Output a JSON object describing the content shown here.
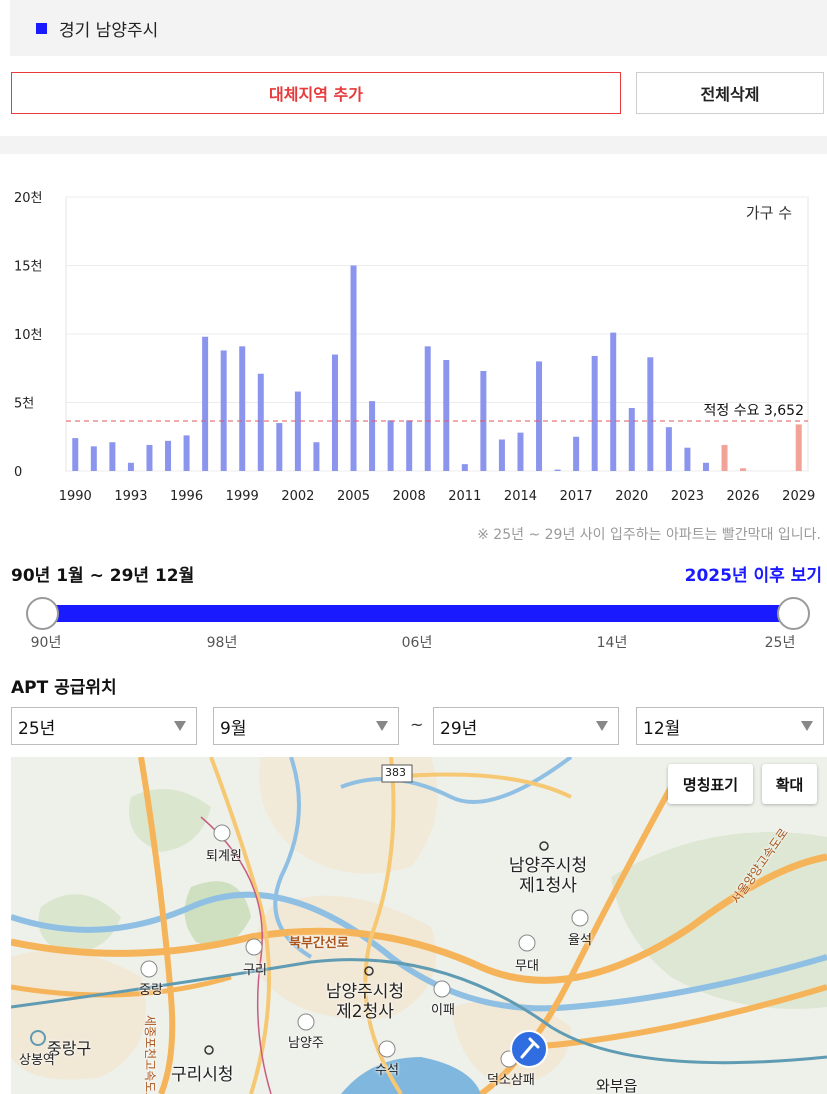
{
  "region": {
    "label": "경기 남양주시",
    "marker_color": "#1a1aff"
  },
  "buttons": {
    "add_region": "대체지역 추가",
    "delete_all": "전체삭제"
  },
  "chart_data": {
    "type": "bar",
    "unit_label": "가구 수",
    "y_ticks": [
      "0",
      "5천",
      "10천",
      "15천",
      "20천"
    ],
    "ylim": [
      0,
      20000
    ],
    "x_tick_labels": [
      "1990",
      "1993",
      "1996",
      "1999",
      "2002",
      "2005",
      "2008",
      "2011",
      "2014",
      "2017",
      "2020",
      "2023",
      "2026",
      "2029"
    ],
    "years": [
      1990,
      1991,
      1992,
      1993,
      1994,
      1995,
      1996,
      1997,
      1998,
      1999,
      2000,
      2001,
      2002,
      2003,
      2004,
      2005,
      2006,
      2007,
      2008,
      2009,
      2010,
      2011,
      2012,
      2013,
      2014,
      2015,
      2016,
      2017,
      2018,
      2019,
      2020,
      2021,
      2022,
      2023,
      2024,
      2025,
      2026,
      2027,
      2028,
      2029
    ],
    "values": [
      2400,
      1800,
      2100,
      600,
      1900,
      2200,
      2600,
      9800,
      8800,
      9100,
      7100,
      3500,
      5800,
      2100,
      8500,
      15000,
      5100,
      3700,
      3700,
      9100,
      8100,
      500,
      7300,
      2300,
      2800,
      8000,
      100,
      2500,
      8400,
      10100,
      4600,
      8300,
      3200,
      1700,
      600,
      1900,
      200,
      0,
      0,
      3400
    ],
    "future_from_year": 2025,
    "bar_color": "#8c95ee",
    "future_bar_color": "#f2a397",
    "reference": {
      "label": "적정 수요 3,652",
      "value": 3652,
      "color": "#e05a5a"
    }
  },
  "footnote": "※ 25년 ~ 29년 사이 입주하는 아파트는 빨간막대 입니다.",
  "range": {
    "title": "90년 1월 ~ 29년 12월",
    "link": "2025년 이후 보기",
    "tick_labels": [
      "90년",
      "98년",
      "06년",
      "14년",
      "25년"
    ],
    "accent_color": "#1a1aff"
  },
  "apt_supply": {
    "title": "APT 공급위치",
    "start_year": "25년",
    "start_month": "9월",
    "separator": "~",
    "end_year": "29년",
    "end_month": "12월"
  },
  "map": {
    "btn_names": "명칭표기",
    "btn_zoom": "확대",
    "labels": [
      "383",
      "퇴계원",
      "북부간선로",
      "구리",
      "중랑",
      "중랑구",
      "상봉역",
      "구리시청",
      "남양주",
      "남양주시청 제2청사",
      "남양주시청 제1청사",
      "율석",
      "무대",
      "이패",
      "수석",
      "덕소삼패",
      "와부읍",
      "서울양양고속도로",
      "세종포천고속도로"
    ]
  }
}
